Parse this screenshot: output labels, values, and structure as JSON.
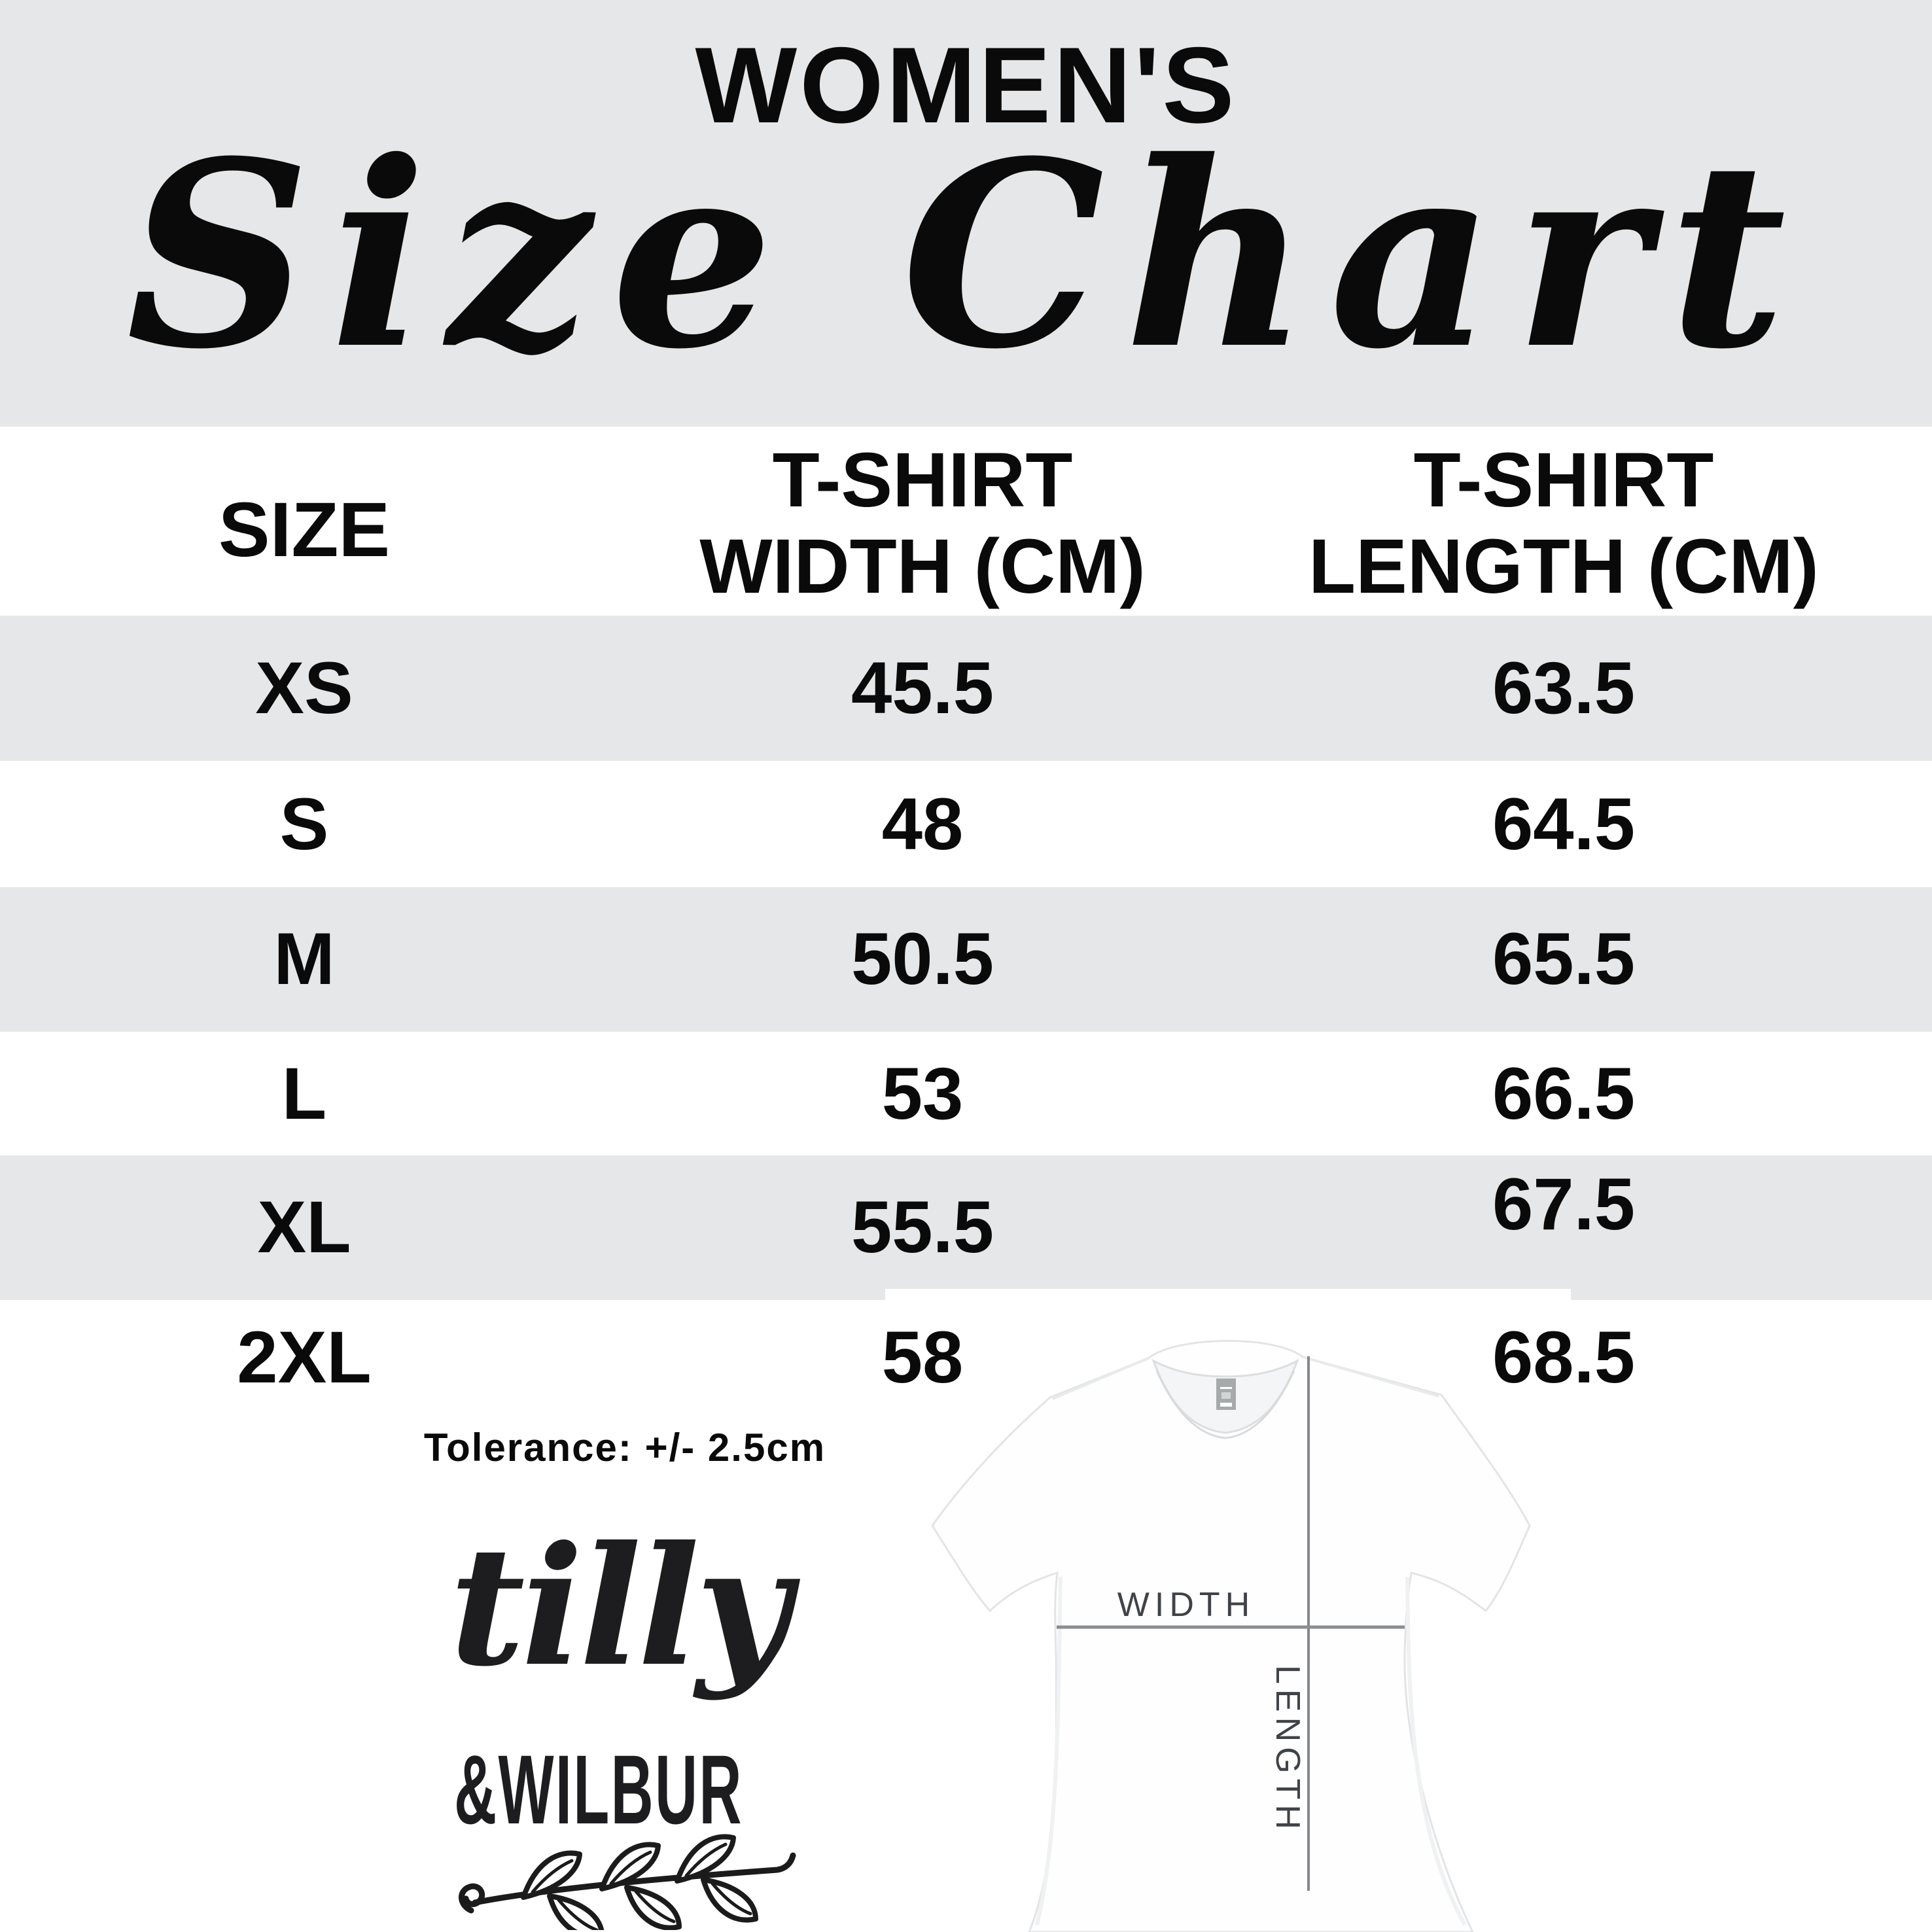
{
  "header": {
    "kicker": "WOMEN'S",
    "title": "Size Chart"
  },
  "table": {
    "size_header": "SIZE",
    "width_header_lines": [
      "T-SHIRT",
      "WIDTH (CM)"
    ],
    "length_header_lines": [
      "T-SHIRT",
      "LENGTH (CM)"
    ],
    "rows": [
      {
        "size": "XS",
        "width": "45.5",
        "length": "63.5"
      },
      {
        "size": "S",
        "width": "48",
        "length": "64.5"
      },
      {
        "size": "M",
        "width": "50.5",
        "length": "65.5"
      },
      {
        "size": "L",
        "width": "53",
        "length": "66.5"
      },
      {
        "size": "XL",
        "width": "55.5",
        "length": "67.5"
      },
      {
        "size": "2XL",
        "width": "58",
        "length": "68.5"
      }
    ]
  },
  "chart_data": {
    "type": "table",
    "title": "WOMEN'S Size Chart",
    "columns": [
      "SIZE",
      "T-SHIRT WIDTH (CM)",
      "T-SHIRT LENGTH (CM)"
    ],
    "rows": [
      [
        "XS",
        45.5,
        63.5
      ],
      [
        "S",
        48,
        64.5
      ],
      [
        "M",
        50.5,
        65.5
      ],
      [
        "L",
        53,
        66.5
      ],
      [
        "XL",
        55.5,
        67.5
      ],
      [
        "2XL",
        58,
        68.5
      ]
    ]
  },
  "notes": {
    "tolerance": "Tolerance: +/- 2.5cm"
  },
  "logo": {
    "name_script": "tilly",
    "name_caps": "&WILBUR",
    "icon": "laurel-branch-icon"
  },
  "diagram": {
    "width_label": "WIDTH",
    "length_label": "LENGTH",
    "icon": "t-shirt-photo"
  },
  "colors": {
    "band": "#e6e7e9",
    "text": "#0a0a0a",
    "diagram_line": "#85888b",
    "diagram_text": "#3f4347",
    "neck_tag": "#a6aaac"
  }
}
